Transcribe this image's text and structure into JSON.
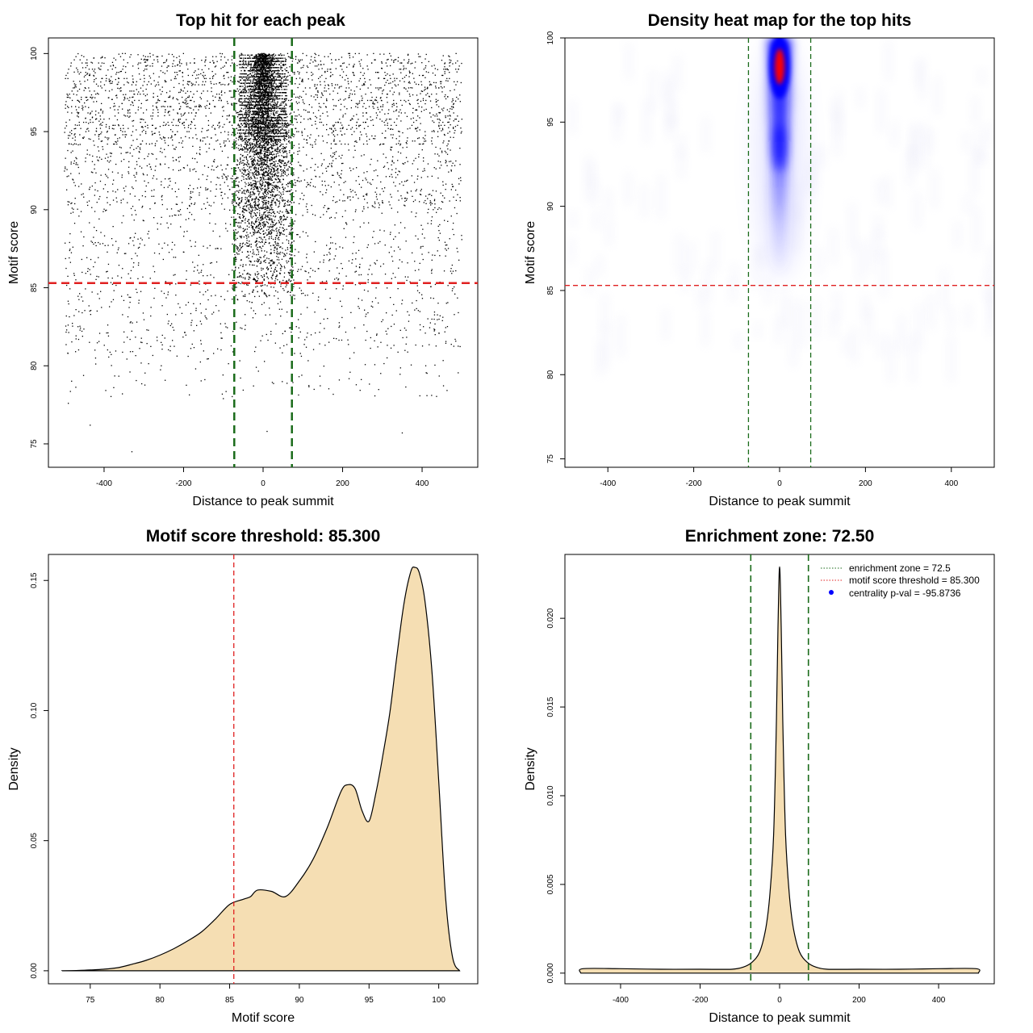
{
  "colors": {
    "enrichment_line": "#1a6b1a",
    "threshold_line": "#e02020",
    "density_fill": "#f5deb3",
    "heat_core": "#ff0000",
    "heat_mid": "#0000ff",
    "points": "#000000"
  },
  "chart_data": [
    {
      "id": "scatter",
      "type": "scatter",
      "title": "Top hit for each peak",
      "xlabel": "Distance to peak summit",
      "ylabel": "Motif score",
      "xlim": [
        -540,
        540
      ],
      "ylim": [
        73.5,
        101
      ],
      "xticks": [
        -400,
        -200,
        0,
        200,
        400
      ],
      "yticks": [
        75,
        80,
        85,
        90,
        95,
        100
      ],
      "x_range_points": [
        -500,
        500
      ],
      "vlines": [
        -72.5,
        72.5
      ],
      "hline": 85.3,
      "outliers": [
        [
          -435,
          76.2
        ],
        [
          -330,
          74.5
        ],
        [
          -490,
          77.6
        ],
        [
          350,
          75.7
        ],
        [
          10,
          75.8
        ],
        [
          -100,
          77.9
        ]
      ]
    },
    {
      "id": "heatmap",
      "type": "heatmap",
      "title": "Density heat map for the top hits",
      "xlabel": "Distance to peak summit",
      "ylabel": "Motif score",
      "xlim": [
        -500,
        500
      ],
      "ylim": [
        74.5,
        100
      ],
      "xticks": [
        -400,
        -200,
        0,
        200,
        400
      ],
      "yticks": [
        75,
        80,
        85,
        90,
        95,
        100
      ],
      "vlines": [
        -72.5,
        72.5
      ],
      "hline": 85.3,
      "hotspot": {
        "x": 0,
        "y": 98.3
      }
    },
    {
      "id": "score_density",
      "type": "area",
      "title": "Motif score threshold: 85.300",
      "xlabel": "Motif score",
      "ylabel": "Density",
      "xlim": [
        72,
        102.8
      ],
      "ylim": [
        -0.005,
        0.16
      ],
      "xticks": [
        75,
        80,
        85,
        90,
        95,
        100
      ],
      "yticks": [
        0.0,
        0.05,
        0.1,
        0.15
      ],
      "ytick_labels": [
        "0.00",
        "0.05",
        "0.10",
        "0.15"
      ],
      "vline": 85.3,
      "x": [
        73,
        74,
        75,
        76,
        77,
        78,
        79,
        80,
        81,
        82,
        83,
        84,
        85,
        86,
        86.5,
        87,
        88,
        89,
        90,
        91,
        92,
        93,
        93.5,
        94,
        94.5,
        95,
        95.5,
        96,
        96.5,
        97,
        97.5,
        98,
        98.3,
        98.6,
        99,
        99.5,
        100,
        100.5,
        101,
        101.5
      ],
      "y": [
        0.0,
        0.0001,
        0.0003,
        0.0006,
        0.0012,
        0.0025,
        0.004,
        0.006,
        0.0085,
        0.0115,
        0.015,
        0.02,
        0.0255,
        0.0275,
        0.0285,
        0.031,
        0.0305,
        0.0285,
        0.0345,
        0.043,
        0.055,
        0.069,
        0.0715,
        0.07,
        0.0615,
        0.0575,
        0.0685,
        0.083,
        0.0995,
        0.121,
        0.141,
        0.1535,
        0.155,
        0.153,
        0.1425,
        0.116,
        0.073,
        0.0275,
        0.005,
        0.0
      ]
    },
    {
      "id": "distance_density",
      "type": "area",
      "title": "Enrichment zone: 72.50",
      "xlabel": "Distance to peak summit",
      "ylabel": "Density",
      "xlim": [
        -540,
        540
      ],
      "ylim": [
        -0.0006,
        0.0236
      ],
      "xticks": [
        -400,
        -200,
        0,
        200,
        400
      ],
      "yticks": [
        0.0,
        0.005,
        0.01,
        0.015,
        0.02
      ],
      "ytick_labels": [
        "0.000",
        "0.005",
        "0.010",
        "0.015",
        "0.020"
      ],
      "vlines": [
        -72.5,
        72.5
      ],
      "x": [
        -500,
        -495,
        -400,
        -300,
        -200,
        -120,
        -90,
        -70,
        -50,
        -35,
        -25,
        -15,
        -8,
        -4,
        0,
        4,
        8,
        15,
        25,
        35,
        50,
        70,
        90,
        120,
        200,
        300,
        400,
        495,
        500
      ],
      "y": [
        0.0,
        0.00025,
        0.00025,
        0.00022,
        0.00022,
        0.00022,
        0.00035,
        0.0006,
        0.0012,
        0.0025,
        0.0043,
        0.0078,
        0.0143,
        0.0195,
        0.0229,
        0.0195,
        0.0143,
        0.0078,
        0.0043,
        0.0025,
        0.0012,
        0.0006,
        0.00035,
        0.00022,
        0.00022,
        0.00022,
        0.00025,
        0.00025,
        0.0
      ],
      "legend": {
        "position": "top-right",
        "entries": [
          {
            "label": "enrichment zone = 72.5",
            "style": "dotted",
            "color": "#1a6b1a"
          },
          {
            "label": "motif score threshold = 85.300",
            "style": "dotted",
            "color": "#e02020"
          },
          {
            "label": "centrality p-val = -95.8736",
            "style": "point",
            "color": "#0000ff"
          }
        ]
      }
    }
  ]
}
